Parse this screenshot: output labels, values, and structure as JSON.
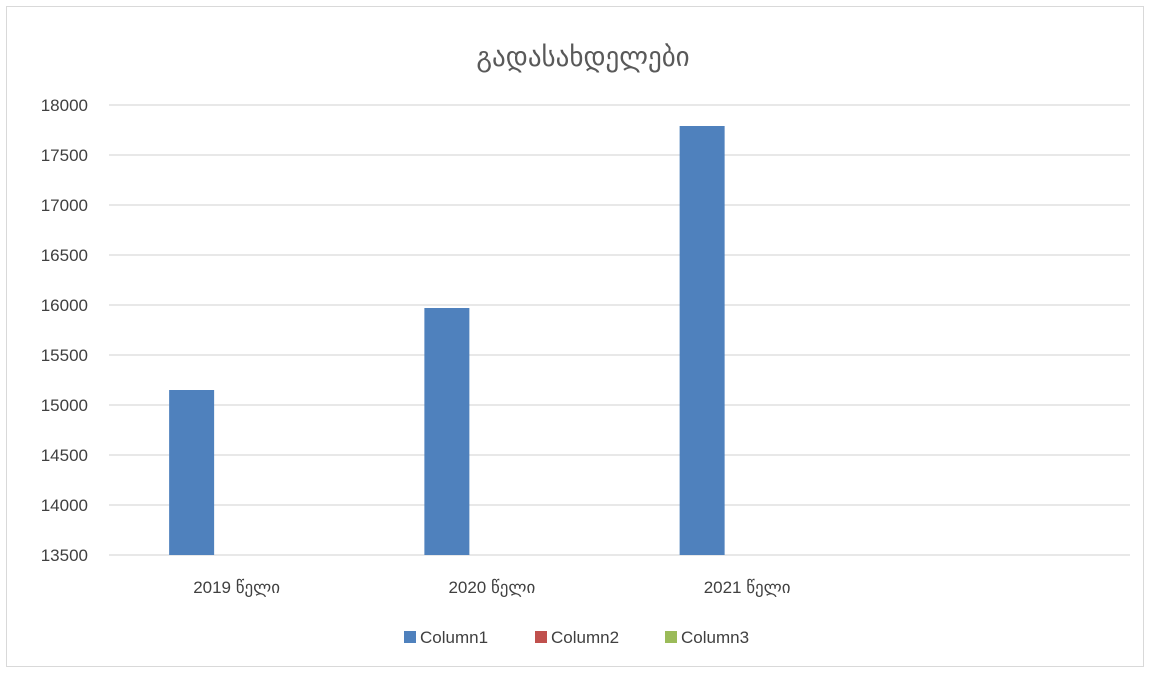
{
  "chart_data": {
    "type": "bar",
    "title": "გადასახდელები",
    "categories": [
      "2019 წელი",
      "2020 წელი",
      "2021 წელი",
      ""
    ],
    "series": [
      {
        "name": "Column1",
        "color": "#4f81bd",
        "values": [
          15150,
          15970,
          17790,
          null
        ]
      },
      {
        "name": "Column2",
        "color": "#c0504d",
        "values": [
          null,
          null,
          null,
          null
        ]
      },
      {
        "name": "Column3",
        "color": "#9bbb59",
        "values": [
          null,
          null,
          null,
          null
        ]
      }
    ],
    "xlabel": "",
    "ylabel": "",
    "ylim": [
      13500,
      18000
    ],
    "yticks": [
      "13500",
      "14000",
      "14500",
      "15000",
      "15500",
      "16000",
      "16500",
      "17000",
      "17500",
      "18000"
    ],
    "ytick_values": [
      13500,
      14000,
      14500,
      15000,
      15500,
      16000,
      16500,
      17000,
      17500,
      18000
    ],
    "grid": true,
    "legend_position": "bottom",
    "gridline_color": "#d9d9d9"
  }
}
